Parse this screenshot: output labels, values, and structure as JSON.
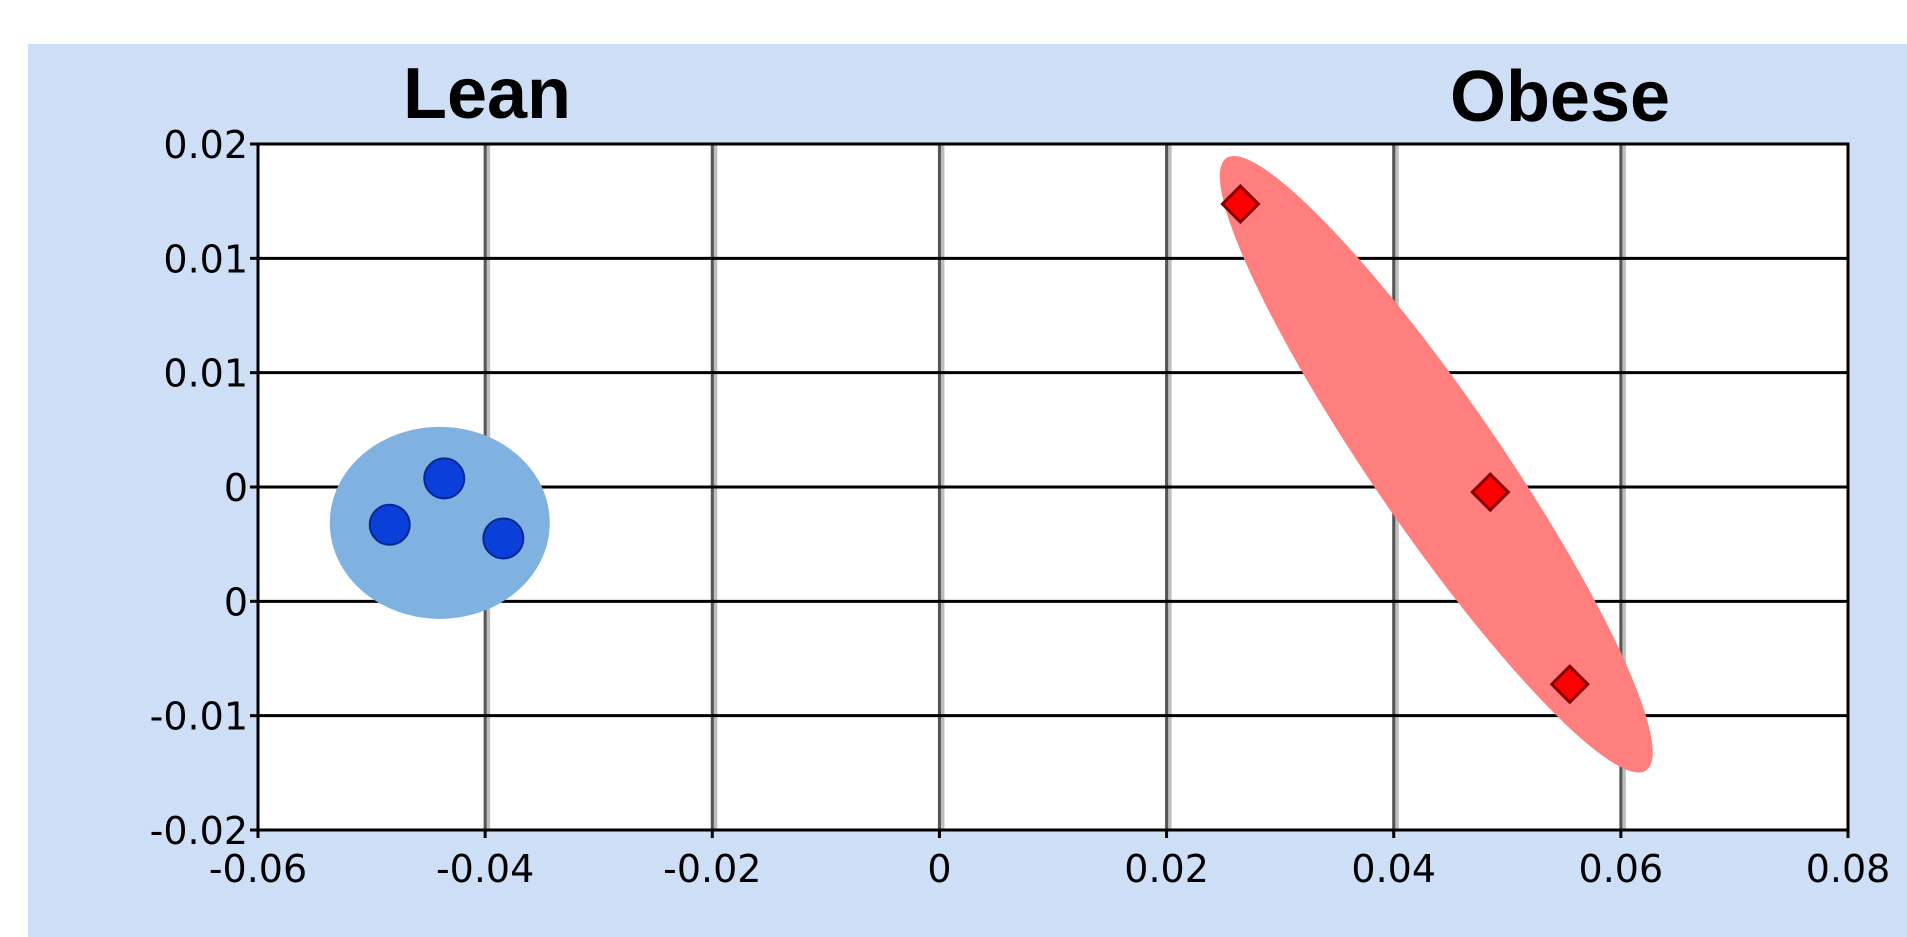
{
  "chart_data": {
    "type": "scatter",
    "title": "",
    "xlabel": "",
    "ylabel": "",
    "xlim": [
      -0.06,
      0.08
    ],
    "ylim": [
      -0.02,
      0.02
    ],
    "grid": true,
    "x_ticks": [
      "-0.06",
      "-0.04",
      "-0.02",
      "0",
      "0.02",
      "0.04",
      "0.06",
      "0.08"
    ],
    "y_ticks": [
      "0.02",
      "0.01",
      "0.01",
      "0",
      "0",
      "-0.01",
      "-0.02"
    ],
    "annotations": [
      {
        "text": "Lean",
        "group": "lean"
      },
      {
        "text": "Obese",
        "group": "obese"
      }
    ],
    "series": [
      {
        "group": "lean",
        "marker": "circle",
        "color": "#0a3fd9",
        "ellipse_color": "#7fb2e0",
        "points": [
          {
            "x": -0.0484,
            "y": -0.0022
          },
          {
            "x": -0.0436,
            "y": 0.0005
          },
          {
            "x": -0.0384,
            "y": -0.003
          }
        ]
      },
      {
        "group": "obese",
        "marker": "diamond",
        "color": "#ff0000",
        "ellipse_color": "#ff7f7f",
        "points": [
          {
            "x": 0.0265,
            "y": 0.0165
          },
          {
            "x": 0.0485,
            "y": -0.0003
          },
          {
            "x": 0.0555,
            "y": -0.0115
          }
        ]
      }
    ],
    "colors": {
      "background": "#cddff7",
      "plot_area": "#ffffff",
      "grid": "#000000"
    }
  }
}
